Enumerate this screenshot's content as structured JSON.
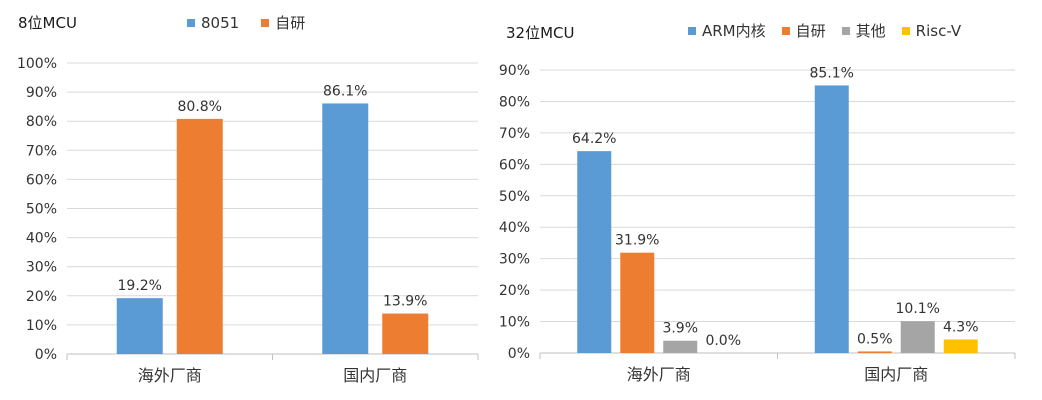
{
  "colors": {
    "blue": "#5B9BD5",
    "orange": "#ED7D31",
    "gray": "#A5A5A5",
    "yellow": "#FFC000"
  },
  "chart_data": [
    {
      "type": "bar",
      "title": "8位MCU",
      "categories": [
        "海外厂商",
        "国内厂商"
      ],
      "series": [
        {
          "name": "8051",
          "color": "#5B9BD5",
          "values": [
            19.2,
            86.1
          ],
          "labels": [
            "19.2%",
            "86.1%"
          ]
        },
        {
          "name": "自研",
          "color": "#ED7D31",
          "values": [
            80.8,
            13.9
          ],
          "labels": [
            "80.8%",
            "13.9%"
          ]
        }
      ],
      "ylim": [
        0,
        100
      ],
      "yticks": [
        "0%",
        "10%",
        "20%",
        "30%",
        "40%",
        "50%",
        "60%",
        "70%",
        "80%",
        "90%",
        "100%"
      ],
      "grid": true,
      "legend_position": "top"
    },
    {
      "type": "bar",
      "title": "32位MCU",
      "categories": [
        "海外厂商",
        "国内厂商"
      ],
      "series": [
        {
          "name": "ARM内核",
          "color": "#5B9BD5",
          "values": [
            64.2,
            85.1
          ],
          "labels": [
            "64.2%",
            "85.1%"
          ]
        },
        {
          "name": "自研",
          "color": "#ED7D31",
          "values": [
            31.9,
            0.5
          ],
          "labels": [
            "31.9%",
            "0.5%"
          ]
        },
        {
          "name": "其他",
          "color": "#A5A5A5",
          "values": [
            3.9,
            10.1
          ],
          "labels": [
            "3.9%",
            "10.1%"
          ]
        },
        {
          "name": "Risc-V",
          "color": "#FFC000",
          "values": [
            0.0,
            4.3
          ],
          "labels": [
            "0.0%",
            "4.3%"
          ]
        }
      ],
      "ylim": [
        0,
        90
      ],
      "yticks": [
        "0%",
        "10%",
        "20%",
        "30%",
        "40%",
        "50%",
        "60%",
        "70%",
        "80%",
        "90%"
      ],
      "grid": true,
      "legend_position": "top"
    }
  ]
}
